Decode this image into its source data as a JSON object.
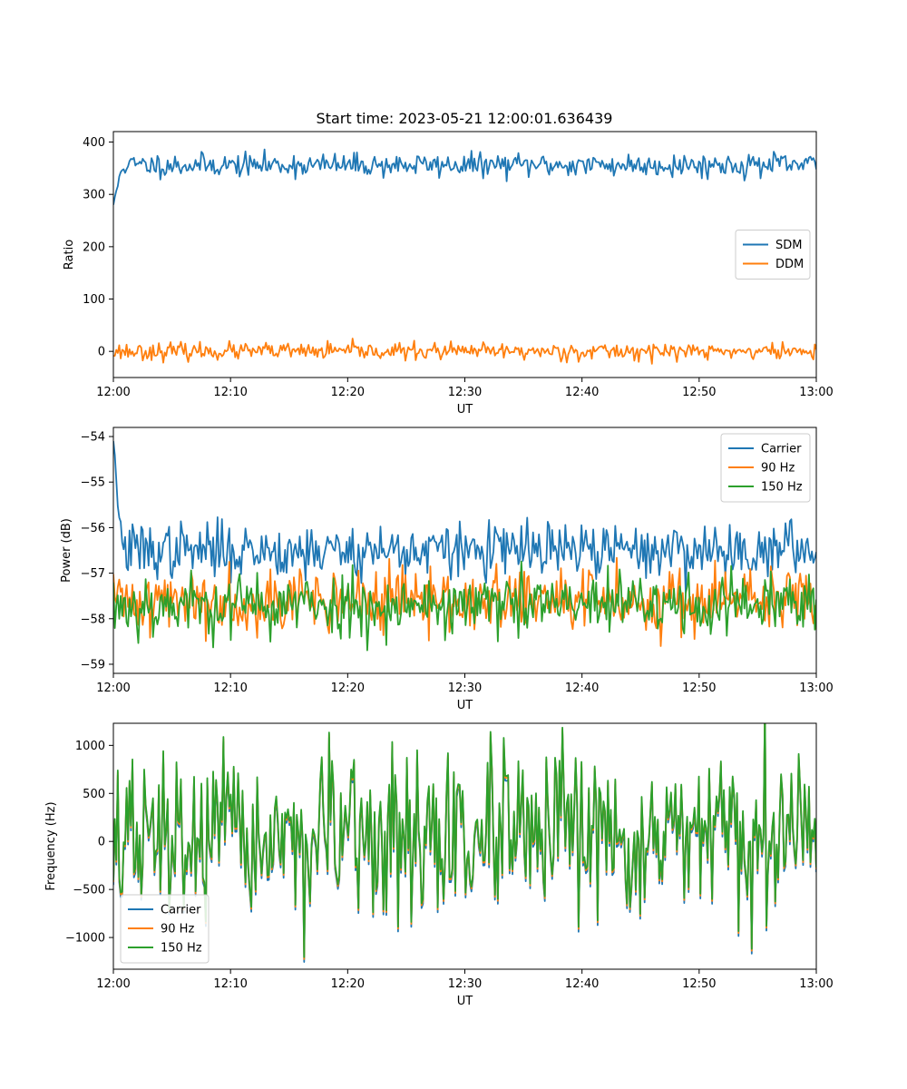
{
  "title": "Start time: 2023-05-21 12:00:01.636439",
  "colors": {
    "blue": "#1f77b4",
    "orange": "#ff7f0e",
    "green": "#2ca02c"
  },
  "chart_data": [
    {
      "type": "line",
      "xlabel": "UT",
      "ylabel": "Ratio",
      "xlim": [
        "12:00",
        "13:00"
      ],
      "ylim": [
        -50,
        420
      ],
      "xticks": [
        "12:00",
        "12:10",
        "12:20",
        "12:30",
        "12:40",
        "12:50",
        "13:00"
      ],
      "yticks": [
        0,
        100,
        200,
        300,
        400
      ],
      "legend_location": "center-right",
      "series": [
        {
          "name": "SDM",
          "color": "#1f77b4",
          "mean": 356,
          "noise": 11,
          "spike_start": 280,
          "seed": 11
        },
        {
          "name": "DDM",
          "color": "#ff7f0e",
          "mean": 0,
          "noise": 8,
          "seed": 23
        }
      ]
    },
    {
      "type": "line",
      "xlabel": "UT",
      "ylabel": "Power (dB)",
      "xlim": [
        "12:00",
        "13:00"
      ],
      "ylim": [
        -59.2,
        -53.8
      ],
      "xticks": [
        "12:00",
        "12:10",
        "12:20",
        "12:30",
        "12:40",
        "12:50",
        "13:00"
      ],
      "yticks": [
        -54,
        -55,
        -56,
        -57,
        -58,
        -59
      ],
      "legend_location": "upper-right",
      "series": [
        {
          "name": "Carrier",
          "color": "#1f77b4",
          "mean": -56.5,
          "noise": 0.3,
          "spike_start": -54.1,
          "seed": 37
        },
        {
          "name": "90 Hz",
          "color": "#ff7f0e",
          "mean": -57.6,
          "noise": 0.35,
          "seed": 41
        },
        {
          "name": "150 Hz",
          "color": "#2ca02c",
          "mean": -57.7,
          "noise": 0.35,
          "seed": 53
        }
      ]
    },
    {
      "type": "line",
      "xlabel": "UT",
      "ylabel": "Frequency (Hz)",
      "xlim": [
        "12:00",
        "13:00"
      ],
      "ylim": [
        -1330,
        1230
      ],
      "xticks": [
        "12:00",
        "12:10",
        "12:20",
        "12:30",
        "12:40",
        "12:50",
        "13:00"
      ],
      "yticks": [
        1000,
        500,
        0,
        -500,
        -1000
      ],
      "legend_location": "lower-left",
      "series": [
        {
          "name": "Carrier",
          "color": "#1f77b4",
          "mean": -30,
          "noise": 420,
          "seed": 67
        },
        {
          "name": "90 Hz",
          "color": "#ff7f0e",
          "mean": 0,
          "noise": 420,
          "seed": 67
        },
        {
          "name": "150 Hz",
          "color": "#2ca02c",
          "mean": 20,
          "noise": 420,
          "seed": 67
        }
      ]
    }
  ]
}
